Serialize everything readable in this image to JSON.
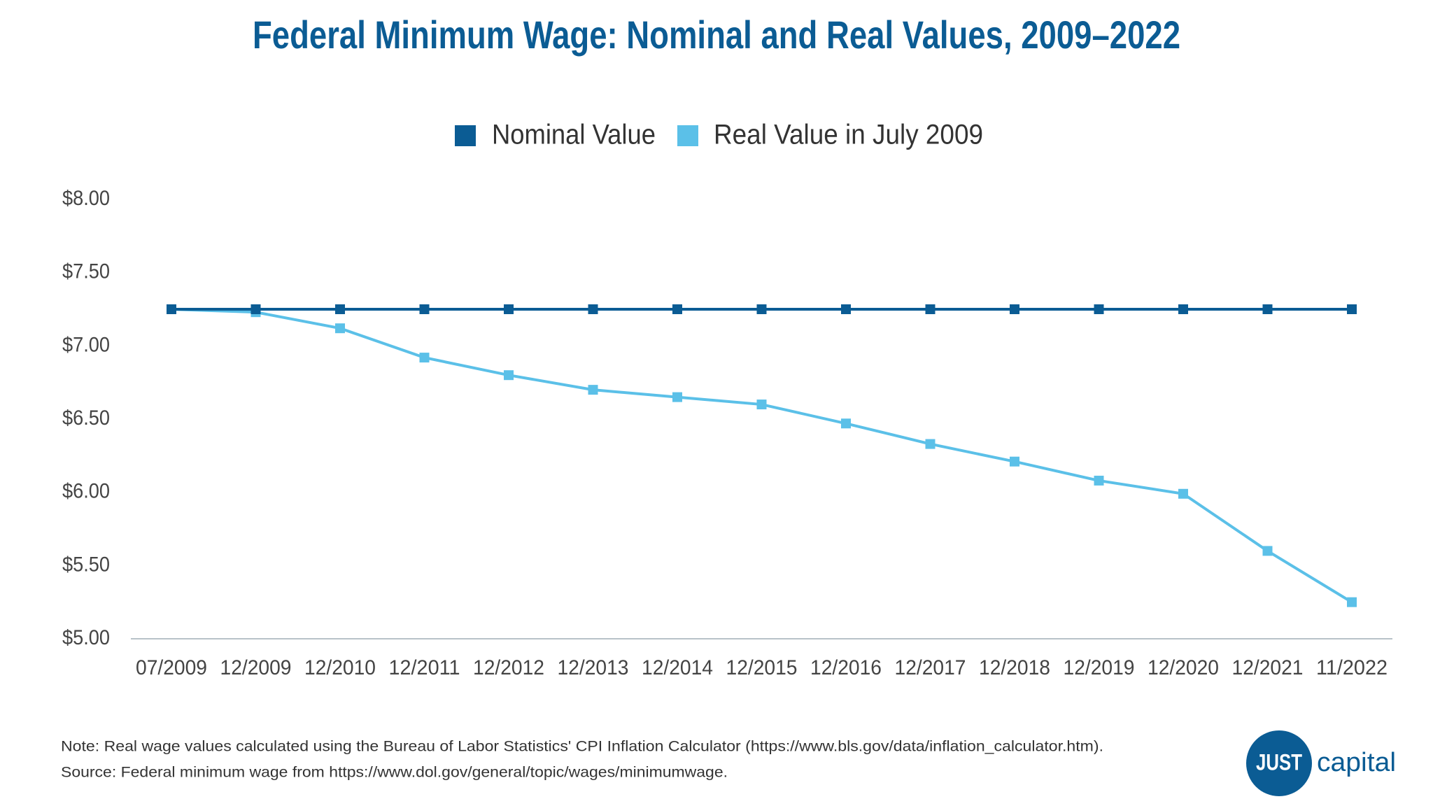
{
  "chart_data": {
    "type": "line",
    "title": "Federal Minimum Wage: Nominal and Real Values, 2009–2022",
    "categories": [
      "07/2009",
      "12/2009",
      "12/2010",
      "12/2011",
      "12/2012",
      "12/2013",
      "12/2014",
      "12/2015",
      "12/2016",
      "12/2017",
      "12/2018",
      "12/2019",
      "12/2020",
      "12/2021",
      "11/2022"
    ],
    "series": [
      {
        "name": "Nominal Value",
        "color": "#0b5c94",
        "values": [
          7.25,
          7.25,
          7.25,
          7.25,
          7.25,
          7.25,
          7.25,
          7.25,
          7.25,
          7.25,
          7.25,
          7.25,
          7.25,
          7.25,
          7.25
        ]
      },
      {
        "name": "Real Value in July 2009",
        "color": "#5bc0e8",
        "values": [
          7.25,
          7.23,
          7.12,
          6.92,
          6.8,
          6.7,
          6.65,
          6.6,
          6.47,
          6.33,
          6.21,
          6.08,
          5.99,
          5.6,
          5.25
        ]
      }
    ],
    "ylim": [
      5,
      8
    ],
    "yticks": [
      {
        "value": 5,
        "label": "$5.00"
      },
      {
        "value": 5.5,
        "label": "$5.50"
      },
      {
        "value": 6,
        "label": "$6.00"
      },
      {
        "value": 6.5,
        "label": "$6.50"
      },
      {
        "value": 7,
        "label": "$7.00"
      },
      {
        "value": 7.5,
        "label": "$7.50"
      },
      {
        "value": 8,
        "label": "$8.00"
      }
    ],
    "grid": false,
    "legend": "top",
    "note": "Note: Real wage values calculated using the Bureau of Labor Statistics' CPI Inflation Calculator (https://www.bls.gov/data/inflation_calculator.htm).",
    "source": "Source: Federal minimum wage from https://www.dol.gov/general/topic/wages/minimumwage."
  },
  "logo": {
    "mark": "JUST",
    "text": "capital"
  }
}
